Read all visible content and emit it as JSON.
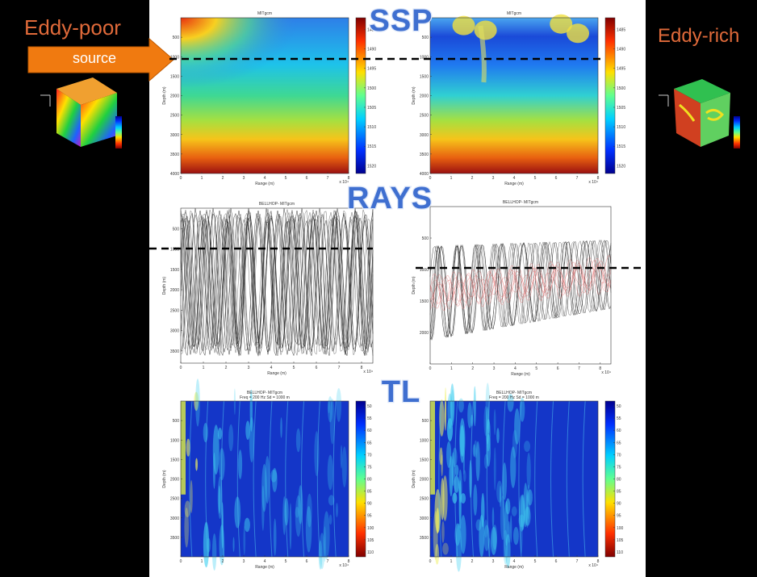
{
  "left_label": "Eddy-poor",
  "right_label": "Eddy-rich",
  "source_label": "source",
  "section_labels": [
    "SSP",
    "RAYS",
    "TL"
  ],
  "panels": [
    {
      "kind": "ssp",
      "title": "MITgcm",
      "ylabel": "Depth (m)",
      "xlabel": "Range (m)",
      "xexp": "x 10⁴",
      "ylim": [
        0,
        4000
      ],
      "yticks": [
        500,
        1000,
        1500,
        2000,
        2500,
        3000,
        3500,
        4000
      ],
      "xlim": [
        0,
        8
      ],
      "xticks": [
        0,
        1,
        2,
        3,
        4,
        5,
        6,
        7,
        8
      ],
      "clim": [
        1482,
        1522
      ],
      "cticks": [
        1485,
        1490,
        1495,
        1500,
        1505,
        1510,
        1515,
        1520
      ]
    },
    {
      "kind": "ssp2",
      "title": "MITgcm",
      "ylabel": "Depth (m)",
      "xlabel": "Range (m)",
      "xexp": "x 10⁴",
      "ylim": [
        0,
        4000
      ],
      "yticks": [
        500,
        1000,
        1500,
        2000,
        2500,
        3000,
        3500,
        4000
      ],
      "xlim": [
        0,
        8
      ],
      "xticks": [
        0,
        1,
        2,
        3,
        4,
        5,
        6,
        7,
        8
      ],
      "clim": [
        1482,
        1522
      ],
      "cticks": [
        1485,
        1490,
        1495,
        1500,
        1505,
        1510,
        1515,
        1520
      ]
    },
    {
      "kind": "rays",
      "title": "BELLHOP- MITgcm",
      "ylabel": "Depth (m)",
      "xlabel": "Range (m)",
      "xexp": "x 10⁴",
      "ylim": [
        0,
        3800
      ],
      "yticks": [
        500,
        1000,
        1500,
        2000,
        2500,
        3000,
        3500
      ],
      "xlim": [
        0,
        8.5
      ],
      "xticks": [
        0,
        1,
        2,
        3,
        4,
        5,
        6,
        7,
        8
      ]
    },
    {
      "kind": "rays2",
      "title": "BELLHOP- MITgcm",
      "ylabel": "Depth (m)",
      "xlabel": "Range (m)",
      "xexp": "x 10⁴",
      "ylim": [
        0,
        2500
      ],
      "yticks": [
        500,
        1000,
        1500,
        2000
      ],
      "xlim": [
        0,
        8.5
      ],
      "xticks": [
        0,
        1,
        2,
        3,
        4,
        5,
        6,
        7,
        8
      ]
    },
    {
      "kind": "tl",
      "title": "BELLHOP- MITgcm",
      "subtitle": "Freq = 200 Hz    Sd = 1000 m",
      "ylabel": "Depth (m)",
      "xlabel": "Range (m)",
      "xexp": "x 10⁴",
      "ylim": [
        0,
        4000
      ],
      "yticks": [
        500,
        1000,
        1500,
        2000,
        2500,
        3000,
        3500
      ],
      "xlim": [
        0,
        8
      ],
      "xticks": [
        0,
        1,
        2,
        3,
        4,
        5,
        6,
        7,
        8
      ],
      "clim": [
        48,
        112
      ],
      "cticks": [
        50,
        55,
        60,
        65,
        70,
        75,
        80,
        85,
        90,
        95,
        100,
        105,
        110
      ]
    },
    {
      "kind": "tl2",
      "title": "BELLHOP- MITgcm",
      "subtitle": "Freq = 200 Hz    Sd = 1000 m",
      "ylabel": "Depth (m)",
      "xlabel": "Range (m)",
      "xexp": "x 10⁴",
      "ylim": [
        0,
        4000
      ],
      "yticks": [
        500,
        1000,
        1500,
        2000,
        2500,
        3000,
        3500
      ],
      "xlim": [
        0,
        8
      ],
      "xticks": [
        0,
        1,
        2,
        3,
        4,
        5,
        6,
        7,
        8
      ],
      "clim": [
        48,
        112
      ],
      "cticks": [
        50,
        55,
        60,
        65,
        70,
        75,
        80,
        85,
        90,
        95,
        100,
        105,
        110
      ]
    }
  ]
}
